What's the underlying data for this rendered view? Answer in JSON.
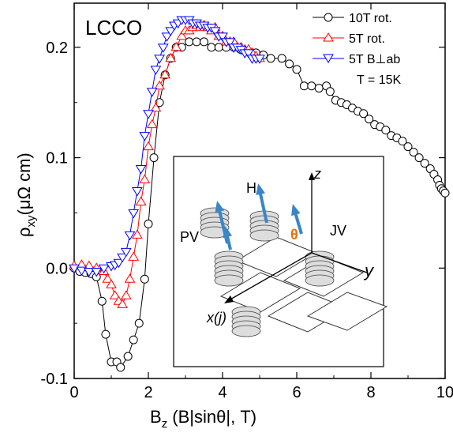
{
  "chart_data": {
    "type": "scatter",
    "panel_label": "LCCO",
    "xlabel": "B",
    "xlabel_sub": "z",
    "xlabel_rest": " (B|sinθ|, T)",
    "ylabel": "ρ",
    "ylabel_sub": "xy",
    "ylabel_rest": "(μΩ cm)",
    "xlim": [
      0,
      10
    ],
    "ylim": [
      -0.1,
      0.24
    ],
    "xticks": [
      0,
      2,
      4,
      6,
      8,
      10
    ],
    "xtick_labels": [
      "0",
      "2",
      "4",
      "6",
      "8",
      "10"
    ],
    "yticks": [
      -0.1,
      0.0,
      0.1,
      0.2
    ],
    "ytick_labels": [
      "-0.1",
      "0.0",
      "0.1",
      "0.2"
    ],
    "grid": false,
    "legend_position": "top-right",
    "annotation": "T = 15K",
    "series": [
      {
        "name": "10T rot.",
        "marker": "circle",
        "color": "#000000",
        "x": [
          0.0,
          0.15,
          0.3,
          0.45,
          0.6,
          0.75,
          0.85,
          1.0,
          1.15,
          1.25,
          1.45,
          1.6,
          1.75,
          1.9,
          2.0,
          2.15,
          2.3,
          2.45,
          2.6,
          2.75,
          2.9,
          3.1,
          3.3,
          3.5,
          3.7,
          3.9,
          4.1,
          4.3,
          4.5,
          4.7,
          4.9,
          5.1,
          5.3,
          5.6,
          5.8,
          6.0,
          6.2,
          6.4,
          6.6,
          6.8,
          6.9,
          7.05,
          7.2,
          7.35,
          7.5,
          7.65,
          7.8,
          7.95,
          8.1,
          8.25,
          8.4,
          8.55,
          8.7,
          8.85,
          9.0,
          9.15,
          9.3,
          9.45,
          9.6,
          9.7,
          9.8,
          9.85,
          9.9,
          9.95,
          10.0
        ],
        "y": [
          0.0,
          -0.003,
          -0.004,
          -0.005,
          -0.008,
          -0.03,
          -0.06,
          -0.085,
          -0.085,
          -0.09,
          -0.08,
          -0.065,
          -0.05,
          -0.01,
          0.04,
          0.1,
          0.15,
          0.175,
          0.19,
          0.2,
          0.2,
          0.205,
          0.205,
          0.205,
          0.2,
          0.2,
          0.2,
          0.2,
          0.198,
          0.196,
          0.195,
          0.193,
          0.19,
          0.19,
          0.185,
          0.18,
          0.165,
          0.165,
          0.163,
          0.165,
          0.16,
          0.152,
          0.15,
          0.148,
          0.145,
          0.142,
          0.14,
          0.135,
          0.13,
          0.128,
          0.125,
          0.12,
          0.118,
          0.115,
          0.11,
          0.105,
          0.1,
          0.095,
          0.09,
          0.085,
          0.08,
          0.075,
          0.072,
          0.07,
          0.068
        ]
      },
      {
        "name": "5T rot.",
        "marker": "triangle-up",
        "color": "#ff0000",
        "x": [
          0.0,
          0.2,
          0.4,
          0.6,
          0.8,
          0.9,
          1.0,
          1.1,
          1.2,
          1.3,
          1.4,
          1.5,
          1.6,
          1.7,
          1.8,
          1.9,
          2.0,
          2.1,
          2.2,
          2.3,
          2.45,
          2.6,
          2.75,
          2.9,
          3.0,
          3.1,
          3.2,
          3.3,
          3.4,
          3.5,
          3.6,
          3.7,
          3.8,
          3.9,
          4.0,
          4.1,
          4.2,
          4.3,
          4.4,
          4.5,
          4.6,
          4.7,
          4.8,
          4.9,
          5.0
        ],
        "y": [
          0.002,
          0.003,
          0.002,
          0.0,
          -0.003,
          -0.01,
          -0.015,
          -0.025,
          -0.03,
          -0.033,
          -0.025,
          -0.01,
          0.01,
          0.03,
          0.06,
          0.08,
          0.11,
          0.13,
          0.145,
          0.165,
          0.175,
          0.19,
          0.2,
          0.21,
          0.215,
          0.215,
          0.218,
          0.22,
          0.218,
          0.22,
          0.218,
          0.215,
          0.218,
          0.21,
          0.21,
          0.205,
          0.205,
          0.205,
          0.2,
          0.2,
          0.198,
          0.198,
          0.195,
          0.192,
          0.19
        ]
      },
      {
        "name": "5T B⊥ab",
        "marker": "triangle-down",
        "color": "#0000ff",
        "x": [
          0.0,
          0.2,
          0.4,
          0.6,
          0.8,
          1.0,
          1.1,
          1.2,
          1.3,
          1.4,
          1.5,
          1.6,
          1.7,
          1.8,
          1.9,
          2.0,
          2.1,
          2.2,
          2.3,
          2.4,
          2.5,
          2.6,
          2.7,
          2.8,
          2.9,
          3.0,
          3.1,
          3.2,
          3.3,
          3.4,
          3.5,
          3.6,
          3.7,
          3.8,
          3.9,
          4.0,
          4.1,
          4.2,
          4.3,
          4.4,
          4.5,
          4.6,
          4.7,
          4.8,
          4.9,
          5.0
        ],
        "y": [
          0.0,
          -0.002,
          -0.003,
          -0.003,
          0.0,
          0.002,
          0.003,
          0.005,
          0.01,
          0.015,
          0.03,
          0.05,
          0.07,
          0.09,
          0.12,
          0.14,
          0.16,
          0.18,
          0.19,
          0.2,
          0.21,
          0.215,
          0.22,
          0.222,
          0.225,
          0.225,
          0.225,
          0.222,
          0.222,
          0.22,
          0.22,
          0.218,
          0.218,
          0.215,
          0.21,
          0.21,
          0.205,
          0.205,
          0.2,
          0.2,
          0.198,
          0.195,
          0.195,
          0.19,
          0.19,
          0.19
        ]
      }
    ]
  },
  "inset": {
    "label_z": "z",
    "label_h": "H",
    "label_jv": "JV",
    "label_pv": "PV",
    "label_theta": "θ",
    "label_y": "y",
    "label_x": "x(j)",
    "arrow_color": "#3a86c8",
    "theta_color": "#e07010"
  }
}
